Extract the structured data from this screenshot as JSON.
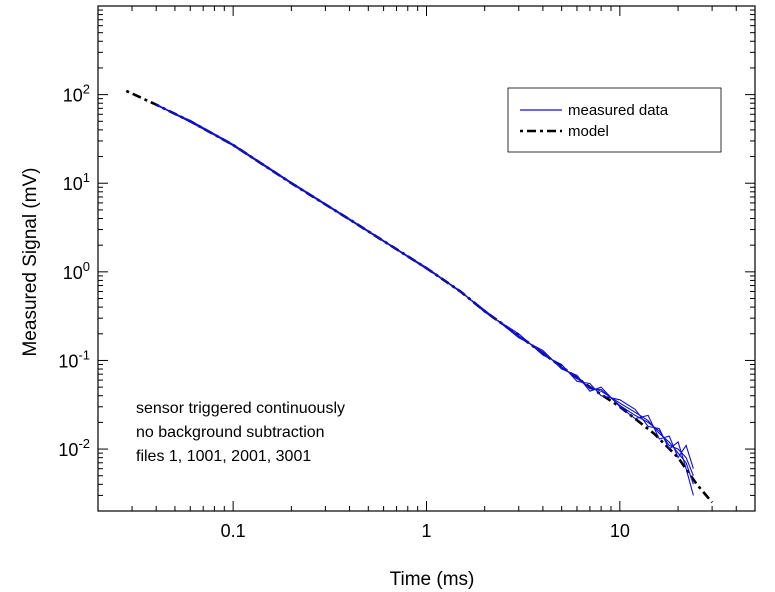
{
  "chart_data": {
    "type": "line",
    "title": "",
    "xlabel": "Time (ms)",
    "ylabel": "Measured Signal (mV)",
    "xscale": "log",
    "yscale": "log",
    "xlim": [
      0.02,
      50
    ],
    "ylim": [
      0.002,
      1000
    ],
    "grid": false,
    "legend_position": "top-right",
    "x_ticks": [
      {
        "value": 0.1,
        "label": "0.1"
      },
      {
        "value": 1,
        "label": "1"
      },
      {
        "value": 10,
        "label": "10"
      }
    ],
    "y_ticks": [
      {
        "value": 0.01,
        "base": "10",
        "exp": "-2"
      },
      {
        "value": 0.1,
        "base": "10",
        "exp": "-1"
      },
      {
        "value": 1,
        "base": "10",
        "exp": "0"
      },
      {
        "value": 10,
        "base": "10",
        "exp": "1"
      },
      {
        "value": 100,
        "base": "10",
        "exp": "2"
      }
    ],
    "series": [
      {
        "name": "measured data",
        "color": "#1010d0",
        "style": "solid",
        "runs": [
          {
            "x": [
              0.04,
              0.06,
              0.1,
              0.2,
              0.4,
              0.7,
              1,
              1.5,
              2,
              3,
              4,
              5,
              6,
              7,
              8,
              10,
              12,
              14,
              16,
              18,
              20,
              22,
              24
            ],
            "y": [
              77,
              50,
              27,
              10,
              3.9,
              1.8,
              1.1,
              0.6,
              0.36,
              0.19,
              0.12,
              0.085,
              0.062,
              0.05,
              0.045,
              0.033,
              0.026,
              0.021,
              0.015,
              0.012,
              0.009,
              0.007,
              0.004
            ]
          },
          {
            "x": [
              0.04,
              0.06,
              0.1,
              0.2,
              0.4,
              0.7,
              1,
              1.5,
              2,
              3,
              4,
              5,
              6,
              7,
              8,
              10,
              12,
              14,
              16,
              18,
              20,
              22,
              24
            ],
            "y": [
              76,
              51,
              27.5,
              10.2,
              3.95,
              1.82,
              1.1,
              0.59,
              0.37,
              0.18,
              0.13,
              0.08,
              0.068,
              0.045,
              0.05,
              0.03,
              0.022,
              0.024,
              0.013,
              0.014,
              0.008,
              0.011,
              0.006
            ]
          },
          {
            "x": [
              0.04,
              0.06,
              0.1,
              0.2,
              0.4,
              0.7,
              1,
              1.5,
              2,
              3,
              4,
              5,
              6,
              7,
              8,
              10,
              12,
              14,
              16,
              18,
              20,
              22,
              24
            ],
            "y": [
              78,
              50,
              26.5,
              9.9,
              3.85,
              1.78,
              1.08,
              0.61,
              0.35,
              0.2,
              0.115,
              0.09,
              0.058,
              0.055,
              0.04,
              0.036,
              0.028,
              0.018,
              0.017,
              0.01,
              0.012,
              0.006,
              0.003
            ]
          },
          {
            "x": [
              0.04,
              0.06,
              0.1,
              0.2,
              0.4,
              0.7,
              1,
              1.5,
              2,
              3,
              4,
              5,
              6,
              7,
              8,
              10,
              12,
              14,
              16,
              18,
              20,
              22,
              24
            ],
            "y": [
              77,
              49,
              27,
              10.1,
              3.9,
              1.8,
              1.12,
              0.6,
              0.36,
              0.185,
              0.125,
              0.082,
              0.065,
              0.048,
              0.047,
              0.031,
              0.024,
              0.02,
              0.016,
              0.011,
              0.01,
              0.008,
              0.005
            ]
          }
        ]
      },
      {
        "name": "model",
        "color": "#000000",
        "style": "dash-dot",
        "x": [
          0.028,
          0.04,
          0.06,
          0.1,
          0.2,
          0.4,
          0.7,
          1,
          1.5,
          2,
          3,
          4,
          5,
          7,
          10,
          15,
          20,
          25,
          30
        ],
        "y": [
          110,
          77,
          50,
          27,
          10,
          3.9,
          1.8,
          1.1,
          0.6,
          0.36,
          0.19,
          0.12,
          0.085,
          0.05,
          0.03,
          0.015,
          0.008,
          0.004,
          0.0025
        ]
      }
    ],
    "annotation": [
      "sensor triggered continuously",
      "no background subtraction",
      "files 1, 1001, 2001, 3001"
    ]
  }
}
